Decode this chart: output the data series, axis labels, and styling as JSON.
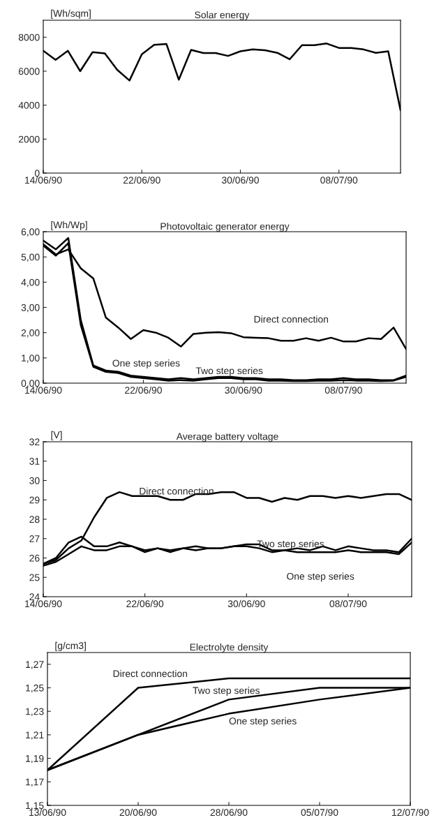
{
  "chart_data": [
    {
      "type": "line",
      "title": "Solar energy",
      "ylabel": "[Wh/sqm]",
      "x": [
        "1990-06-14",
        "1990-06-15",
        "1990-06-16",
        "1990-06-17",
        "1990-06-18",
        "1990-06-19",
        "1990-06-20",
        "1990-06-21",
        "1990-06-22",
        "1990-06-23",
        "1990-06-24",
        "1990-06-25",
        "1990-06-26",
        "1990-06-27",
        "1990-06-28",
        "1990-06-29",
        "1990-06-30",
        "1990-07-01",
        "1990-07-02",
        "1990-07-03",
        "1990-07-04",
        "1990-07-05",
        "1990-07-06",
        "1990-07-07",
        "1990-07-08",
        "1990-07-09",
        "1990-07-10",
        "1990-07-11",
        "1990-07-12",
        "1990-07-13"
      ],
      "series": [
        {
          "color": "#000000",
          "values": [
            7200,
            6670,
            7200,
            6000,
            7120,
            7050,
            6080,
            5450,
            7000,
            7550,
            7600,
            5500,
            7250,
            7070,
            7070,
            6900,
            7170,
            7280,
            7230,
            7080,
            6700,
            7530,
            7530,
            7630,
            7370,
            7370,
            7280,
            7080,
            7170,
            3700
          ]
        }
      ],
      "xlim": [
        "1990-06-14",
        "1990-07-13"
      ],
      "xticks": [
        {
          "value": "1990-06-14",
          "label": "14/06/90"
        },
        {
          "value": "1990-06-22",
          "label": "22/06/90"
        },
        {
          "value": "1990-06-30",
          "label": "30/06/90"
        },
        {
          "value": "1990-07-08",
          "label": "08/07/90"
        }
      ],
      "ylim": [
        0,
        9000
      ],
      "yticks": [
        0,
        2000,
        4000,
        6000,
        8000
      ],
      "grid": false,
      "legend": false,
      "marker": "none",
      "line_style": "solid"
    },
    {
      "type": "line",
      "title": "Photovoltaic generator energy",
      "ylabel": "[Wh/Wp]",
      "x": [
        "1990-06-14",
        "1990-06-15",
        "1990-06-16",
        "1990-06-17",
        "1990-06-18",
        "1990-06-19",
        "1990-06-20",
        "1990-06-21",
        "1990-06-22",
        "1990-06-23",
        "1990-06-24",
        "1990-06-25",
        "1990-06-26",
        "1990-06-27",
        "1990-06-28",
        "1990-06-29",
        "1990-06-30",
        "1990-07-01",
        "1990-07-02",
        "1990-07-03",
        "1990-07-04",
        "1990-07-05",
        "1990-07-06",
        "1990-07-07",
        "1990-07-08",
        "1990-07-09",
        "1990-07-10",
        "1990-07-11",
        "1990-07-12",
        "1990-07-13"
      ],
      "series": [
        {
          "name": "Direct connection",
          "color": "#000000",
          "values": [
            5.5,
            5.1,
            5.3,
            4.55,
            4.15,
            2.6,
            2.2,
            1.75,
            2.1,
            2.0,
            1.8,
            1.45,
            1.95,
            2.0,
            2.02,
            1.98,
            1.82,
            1.8,
            1.78,
            1.68,
            1.68,
            1.78,
            1.68,
            1.8,
            1.65,
            1.65,
            1.78,
            1.75,
            2.2,
            1.35
          ]
        },
        {
          "name": "Two step series",
          "color": "#000000",
          "values": [
            5.65,
            5.3,
            5.75,
            2.5,
            0.7,
            0.5,
            0.45,
            0.3,
            0.25,
            0.2,
            0.15,
            0.2,
            0.15,
            0.2,
            0.25,
            0.25,
            0.2,
            0.2,
            0.15,
            0.15,
            0.12,
            0.12,
            0.15,
            0.15,
            0.2,
            0.15,
            0.15,
            0.12,
            0.12,
            0.3
          ]
        },
        {
          "name": "One step series",
          "color": "#000000",
          "values": [
            5.45,
            5.05,
            5.55,
            2.3,
            0.65,
            0.45,
            0.4,
            0.25,
            0.2,
            0.15,
            0.1,
            0.12,
            0.1,
            0.15,
            0.2,
            0.2,
            0.15,
            0.15,
            0.1,
            0.1,
            0.08,
            0.08,
            0.1,
            0.1,
            0.12,
            0.1,
            0.1,
            0.08,
            0.1,
            0.25
          ]
        }
      ],
      "xlim": [
        "1990-06-14",
        "1990-07-13"
      ],
      "xticks": [
        {
          "value": "1990-06-14",
          "label": "14/06/90"
        },
        {
          "value": "1990-06-22",
          "label": "22/06/90"
        },
        {
          "value": "1990-06-30",
          "label": "30/06/90"
        },
        {
          "value": "1990-07-08",
          "label": "08/07/90"
        }
      ],
      "ylim": [
        0,
        6
      ],
      "yticks": [
        {
          "value": 0,
          "label": "0,00"
        },
        {
          "value": 1,
          "label": "1,00"
        },
        {
          "value": 2,
          "label": "2,00"
        },
        {
          "value": 3,
          "label": "3,00"
        },
        {
          "value": 4,
          "label": "4,00"
        },
        {
          "value": 5,
          "label": "5,00"
        },
        {
          "value": 6,
          "label": "6,00"
        }
      ],
      "grid": false,
      "legend": false,
      "marker": "none",
      "line_style": "solid"
    },
    {
      "type": "line",
      "title": "Average battery voltage",
      "ylabel": "[V]",
      "x": [
        "1990-06-14",
        "1990-06-15",
        "1990-06-16",
        "1990-06-17",
        "1990-06-18",
        "1990-06-19",
        "1990-06-20",
        "1990-06-21",
        "1990-06-22",
        "1990-06-23",
        "1990-06-24",
        "1990-06-25",
        "1990-06-26",
        "1990-06-27",
        "1990-06-28",
        "1990-06-29",
        "1990-06-30",
        "1990-07-01",
        "1990-07-02",
        "1990-07-03",
        "1990-07-04",
        "1990-07-05",
        "1990-07-06",
        "1990-07-07",
        "1990-07-08",
        "1990-07-09",
        "1990-07-10",
        "1990-07-11",
        "1990-07-12",
        "1990-07-13"
      ],
      "series": [
        {
          "name": "Direct connection",
          "color": "#000000",
          "values": [
            25.7,
            25.9,
            26.5,
            26.9,
            28.1,
            29.1,
            29.4,
            29.2,
            29.2,
            29.2,
            29.0,
            29.0,
            29.3,
            29.3,
            29.4,
            29.4,
            29.1,
            29.1,
            28.9,
            29.1,
            29.0,
            29.2,
            29.2,
            29.1,
            29.2,
            29.1,
            29.2,
            29.3,
            29.3,
            29.0
          ]
        },
        {
          "name": "Two step series",
          "color": "#000000",
          "values": [
            25.7,
            26.0,
            26.8,
            27.1,
            26.6,
            26.6,
            26.8,
            26.6,
            26.4,
            26.5,
            26.4,
            26.5,
            26.6,
            26.5,
            26.5,
            26.6,
            26.7,
            26.7,
            26.4,
            26.4,
            26.5,
            26.4,
            26.6,
            26.4,
            26.6,
            26.5,
            26.4,
            26.4,
            26.3,
            27.0
          ]
        },
        {
          "name": "One step series",
          "color": "#000000",
          "values": [
            25.6,
            25.8,
            26.2,
            26.6,
            26.4,
            26.4,
            26.6,
            26.6,
            26.3,
            26.5,
            26.3,
            26.5,
            26.4,
            26.5,
            26.5,
            26.6,
            26.6,
            26.5,
            26.3,
            26.4,
            26.3,
            26.3,
            26.3,
            26.3,
            26.4,
            26.3,
            26.3,
            26.3,
            26.2,
            26.8
          ]
        }
      ],
      "xlim": [
        "1990-06-14",
        "1990-07-13"
      ],
      "xticks": [
        {
          "value": "1990-06-14",
          "label": "14/06/90"
        },
        {
          "value": "1990-06-22",
          "label": "22/06/90"
        },
        {
          "value": "1990-06-30",
          "label": "30/06/90"
        },
        {
          "value": "1990-07-08",
          "label": "08/07/90"
        }
      ],
      "ylim": [
        24,
        32
      ],
      "yticks": [
        24,
        25,
        26,
        27,
        28,
        29,
        30,
        31,
        32
      ],
      "grid": false,
      "legend": false,
      "marker": "none",
      "line_style": "solid"
    },
    {
      "type": "line",
      "title": "Electrolyte density",
      "ylabel": "[g/cm3]",
      "categories": [
        "13/06/90",
        "20/06/90",
        "28/06/90",
        "05/07/90",
        "12/07/90"
      ],
      "series": [
        {
          "name": "Direct connection",
          "color": "#000000",
          "values": [
            1.18,
            1.25,
            1.258,
            1.258,
            1.258
          ]
        },
        {
          "name": "Two step series",
          "color": "#000000",
          "values": [
            1.18,
            1.21,
            1.24,
            1.25,
            1.25
          ]
        },
        {
          "name": "One step series",
          "color": "#000000",
          "values": [
            1.18,
            1.21,
            1.228,
            1.24,
            1.25
          ]
        }
      ],
      "ylim": [
        1.15,
        1.28
      ],
      "yticks": [
        {
          "value": 1.15,
          "label": "1,15"
        },
        {
          "value": 1.17,
          "label": "1,17"
        },
        {
          "value": 1.19,
          "label": "1,19"
        },
        {
          "value": 1.21,
          "label": "1,21"
        },
        {
          "value": 1.23,
          "label": "1,23"
        },
        {
          "value": 1.25,
          "label": "1,25"
        },
        {
          "value": 1.27,
          "label": "1,27"
        }
      ],
      "grid": false,
      "legend": false,
      "marker": "none",
      "line_style": "solid"
    }
  ]
}
